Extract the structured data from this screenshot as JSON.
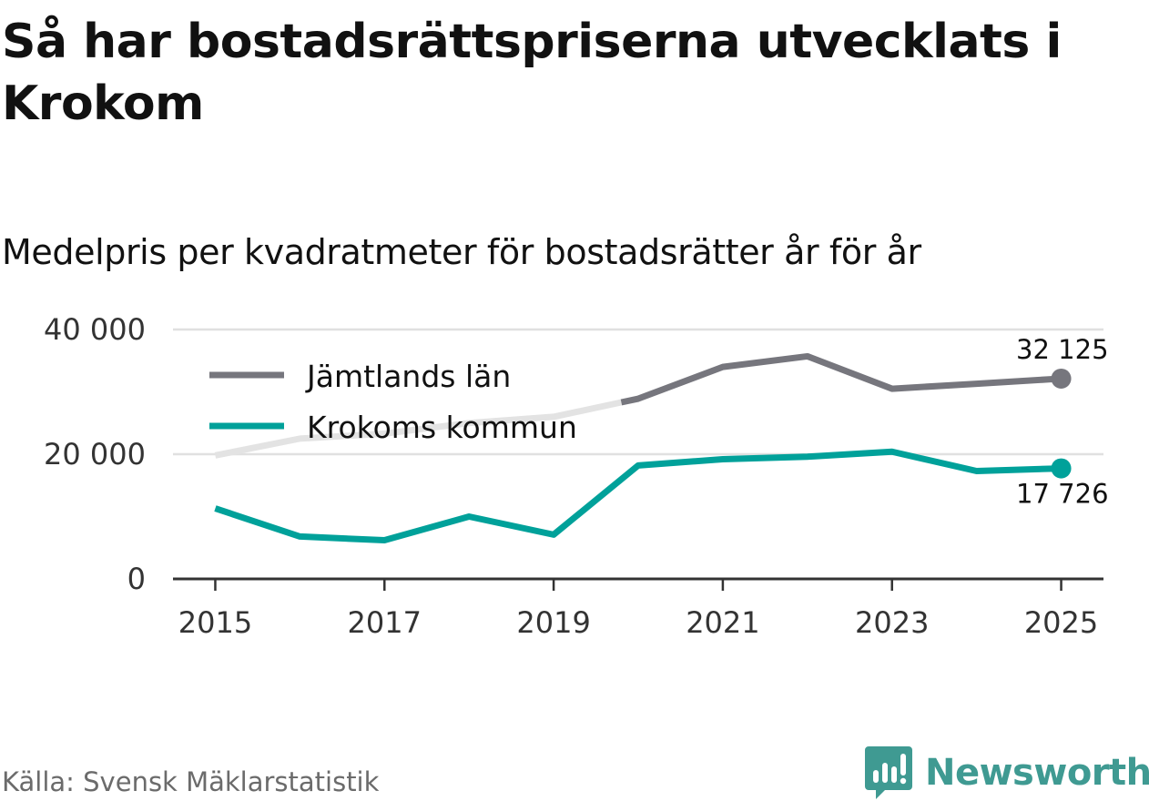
{
  "title": "Så har bostadsrättspriserna utvecklats i Krokom",
  "subtitle": "Medelpris per kvadratmeter för bostadsrätter år för år",
  "source": "Källa: Svensk Mäklarstatistik",
  "brand": "Newsworthy",
  "colors": {
    "county": "#76767d",
    "county_faded": "#e3e3e3",
    "municipality": "#00a19a",
    "grid": "#e0e0e0",
    "axis": "#333333",
    "brand": "#3f9a92"
  },
  "chart_data": {
    "type": "line",
    "title": "Medelpris per kvadratmeter för bostadsrätter år för år",
    "xlabel": "",
    "ylabel": "",
    "x": [
      2015,
      2016,
      2017,
      2018,
      2019,
      2020,
      2021,
      2022,
      2023,
      2024,
      2025
    ],
    "xlim": [
      2014.5,
      2025.5
    ],
    "ylim": [
      0,
      40000
    ],
    "grid": true,
    "legend_position": "top-left",
    "x_ticks": [
      2015,
      2017,
      2019,
      2021,
      2023,
      2025
    ],
    "x_tick_labels": [
      "2015",
      "2017",
      "2019",
      "2021",
      "2023",
      "2025"
    ],
    "y_ticks": [
      0,
      20000,
      40000
    ],
    "y_tick_labels": [
      "0",
      "20 000",
      "40 000"
    ],
    "series": [
      {
        "name": "Jämtlands län",
        "values": [
          19800,
          22500,
          23300,
          25000,
          26000,
          28900,
          34000,
          35700,
          30500,
          31300,
          32125
        ],
        "faded_before_x": 2019.8,
        "end_label": "32 125"
      },
      {
        "name": "Krokoms kommun",
        "values": [
          11300,
          6800,
          6200,
          10000,
          7100,
          18200,
          19200,
          19600,
          20400,
          17300,
          17726
        ],
        "end_label": "17 726"
      }
    ]
  }
}
